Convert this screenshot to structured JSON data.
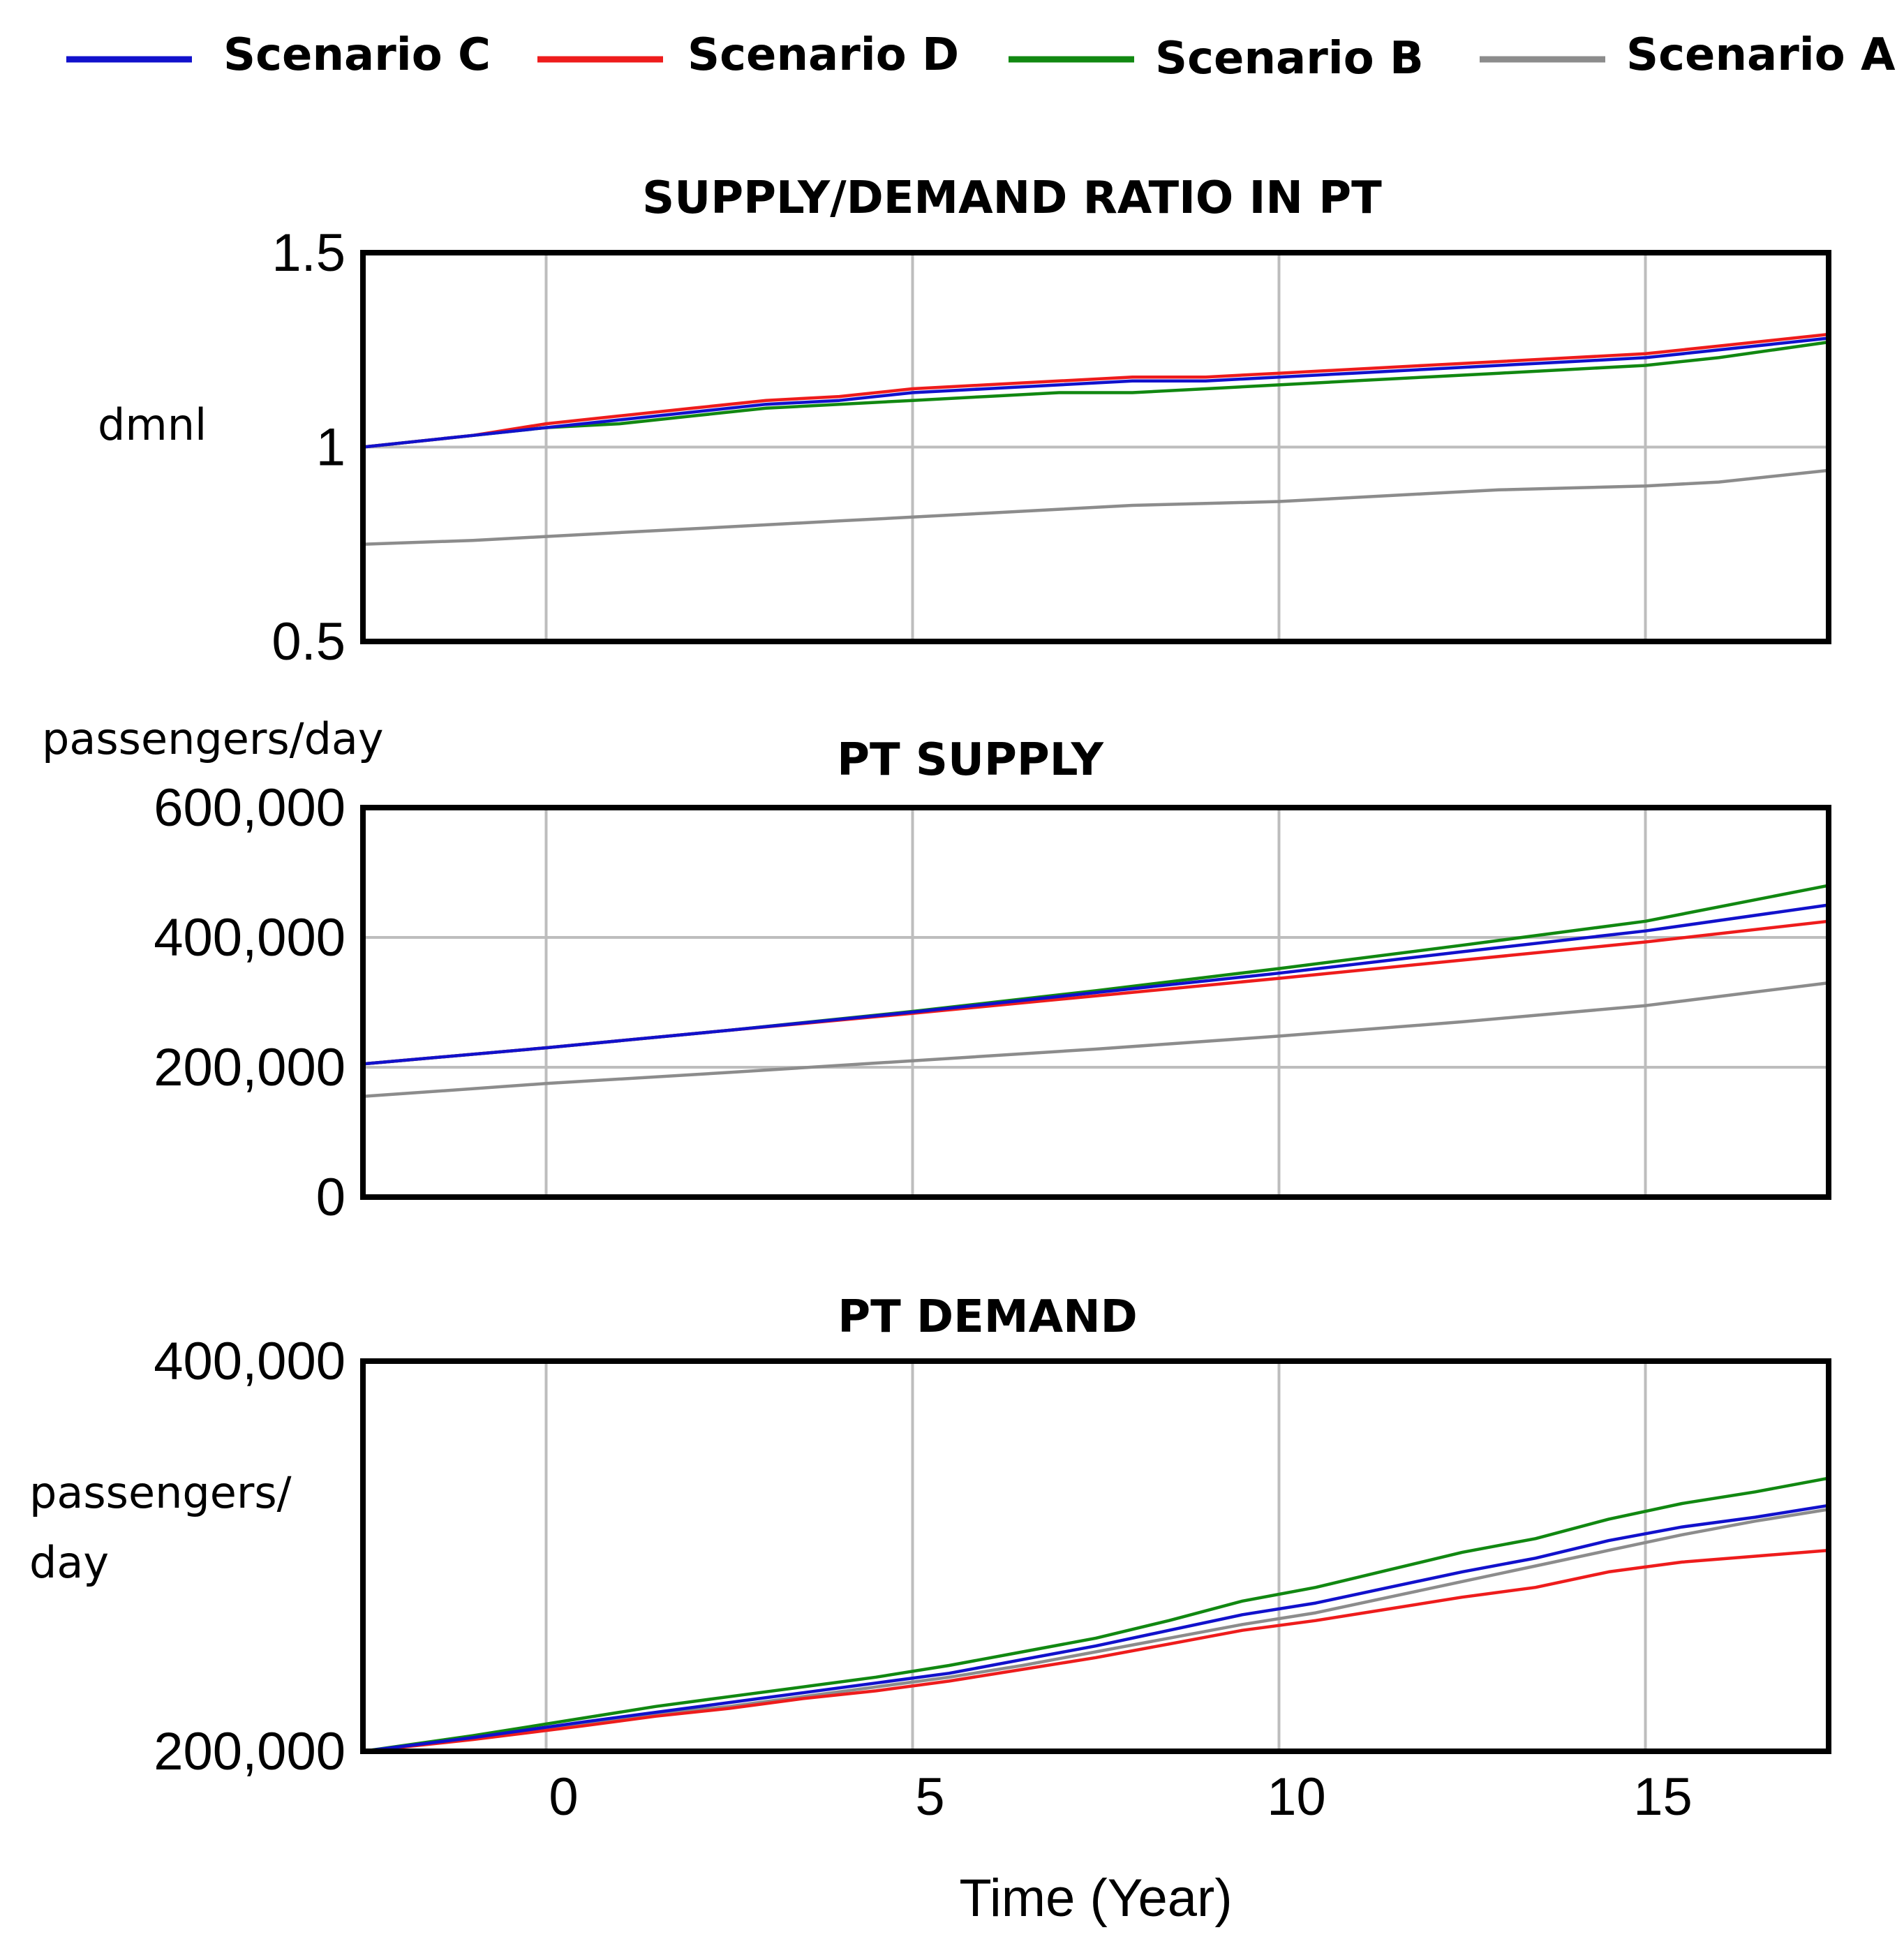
{
  "legend": [
    {
      "name": "Scenario C",
      "color": "#1111cc"
    },
    {
      "name": "Scenario D",
      "color": "#ee1c1c"
    },
    {
      "name": "Scenario B",
      "color": "#118811"
    },
    {
      "name": "Scenario A",
      "color": "#8c8c8c"
    }
  ],
  "xlabel": "Time (Year)",
  "x_ticks": [
    "0",
    "5",
    "10",
    "15"
  ],
  "chart_data": [
    {
      "type": "line",
      "title": "SUPPLY/DEMAND RATIO IN PT",
      "ylabel": "dmnl",
      "xlim": [
        -2.5,
        17.5
      ],
      "ylim": [
        0.5,
        1.5
      ],
      "y_ticks": [
        "1.5",
        "1",
        "0.5"
      ],
      "y_tick_values": [
        1.5,
        1,
        0.5
      ],
      "x": [
        -2.5,
        -1,
        0,
        1,
        2,
        3,
        4,
        5,
        6,
        7,
        8,
        9,
        10,
        11,
        12,
        13,
        14,
        15,
        16,
        17.5
      ],
      "series": [
        {
          "name": "Scenario C",
          "values": [
            1.0,
            1.03,
            1.05,
            1.07,
            1.09,
            1.11,
            1.12,
            1.14,
            1.15,
            1.16,
            1.17,
            1.17,
            1.18,
            1.19,
            1.2,
            1.21,
            1.22,
            1.23,
            1.25,
            1.28
          ]
        },
        {
          "name": "Scenario D",
          "values": [
            1.0,
            1.03,
            1.06,
            1.08,
            1.1,
            1.12,
            1.13,
            1.15,
            1.16,
            1.17,
            1.18,
            1.18,
            1.19,
            1.2,
            1.21,
            1.22,
            1.23,
            1.24,
            1.26,
            1.29
          ]
        },
        {
          "name": "Scenario B",
          "values": [
            1.0,
            1.03,
            1.05,
            1.06,
            1.08,
            1.1,
            1.11,
            1.12,
            1.13,
            1.14,
            1.14,
            1.15,
            1.16,
            1.17,
            1.18,
            1.19,
            1.2,
            1.21,
            1.23,
            1.27
          ]
        },
        {
          "name": "Scenario A",
          "values": [
            0.75,
            0.76,
            0.77,
            0.78,
            0.79,
            0.8,
            0.81,
            0.82,
            0.83,
            0.84,
            0.85,
            0.855,
            0.86,
            0.87,
            0.88,
            0.89,
            0.895,
            0.9,
            0.91,
            0.94
          ]
        }
      ]
    },
    {
      "type": "line",
      "title": "PT SUPPLY",
      "ylabel": "passengers/day",
      "xlim": [
        -2.5,
        17.5
      ],
      "ylim": [
        0,
        600000
      ],
      "y_ticks": [
        "600,000",
        "400,000",
        "200,000",
        "0"
      ],
      "y_tick_values": [
        600000,
        400000,
        200000,
        0
      ],
      "x": [
        -2.5,
        0,
        2.5,
        5,
        7.5,
        10,
        12.5,
        15,
        17.5
      ],
      "series": [
        {
          "name": "Scenario C",
          "values": [
            205000,
            230000,
            257000,
            285000,
            315000,
            345000,
            378000,
            410000,
            450000
          ]
        },
        {
          "name": "Scenario D",
          "values": [
            205000,
            230000,
            257000,
            283000,
            310000,
            337000,
            365000,
            393000,
            425000
          ]
        },
        {
          "name": "Scenario B",
          "values": [
            205000,
            230000,
            257000,
            286000,
            318000,
            352000,
            388000,
            425000,
            480000
          ]
        },
        {
          "name": "Scenario A",
          "values": [
            155000,
            175000,
            192000,
            210000,
            228000,
            248000,
            270000,
            295000,
            330000
          ]
        }
      ]
    },
    {
      "type": "line",
      "title": "PT DEMAND",
      "ylabel": "passengers/ day",
      "xlim": [
        -2.5,
        17.5
      ],
      "ylim": [
        200000,
        400000
      ],
      "y_ticks": [
        "400,000",
        "200,000"
      ],
      "y_tick_values": [
        400000,
        200000
      ],
      "x": [
        -2.5,
        -1,
        0.5,
        1.5,
        2.5,
        3.5,
        4.5,
        5.5,
        6.5,
        7.5,
        8.5,
        9.5,
        10.5,
        11.5,
        12.5,
        13.5,
        14.5,
        15.5,
        16.5,
        17.5
      ],
      "series": [
        {
          "name": "Scenario C",
          "values": [
            200000,
            207000,
            215000,
            220000,
            225000,
            230000,
            235000,
            240000,
            247000,
            254000,
            262000,
            270000,
            276000,
            284000,
            292000,
            299000,
            308000,
            315000,
            320000,
            326000
          ]
        },
        {
          "name": "Scenario D",
          "values": [
            200000,
            206000,
            213000,
            218000,
            222000,
            227000,
            231000,
            236000,
            242000,
            248000,
            255000,
            262000,
            267000,
            273000,
            279000,
            284000,
            292000,
            297000,
            300000,
            303000
          ]
        },
        {
          "name": "Scenario B",
          "values": [
            200000,
            208000,
            217000,
            223000,
            228000,
            233000,
            238000,
            244000,
            251000,
            258000,
            267000,
            277000,
            284000,
            293000,
            302000,
            309000,
            319000,
            327000,
            333000,
            340000
          ]
        },
        {
          "name": "Scenario A",
          "values": [
            200000,
            207000,
            214000,
            219000,
            223000,
            228000,
            233000,
            238000,
            244000,
            251000,
            258000,
            265000,
            271000,
            279000,
            287000,
            295000,
            303000,
            311000,
            318000,
            324000
          ]
        }
      ]
    }
  ]
}
